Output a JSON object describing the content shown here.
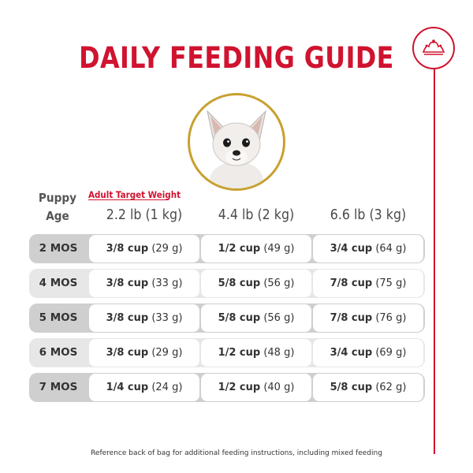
{
  "title": "DAILY FEEDING GUIDE",
  "target_weight_label": "Adult Target Weight",
  "age_header_line1": "Puppy",
  "age_header_line2": "Age",
  "columns": [
    "2.2 lb (1 kg)",
    "4.4 lb (2 kg)",
    "6.6 lb (3 kg)"
  ],
  "rows": [
    {
      "age": "2 MOS",
      "cells": [
        {
          "cup": "3/8 cup",
          "grams": "(29 g)"
        },
        {
          "cup": "1/2 cup",
          "grams": "(49 g)"
        },
        {
          "cup": "3/4 cup",
          "grams": "(64 g)"
        }
      ]
    },
    {
      "age": "4 MOS",
      "cells": [
        {
          "cup": "3/8 cup",
          "grams": "(33 g)"
        },
        {
          "cup": "5/8 cup",
          "grams": "(56 g)"
        },
        {
          "cup": "7/8 cup",
          "grams": "(75 g)"
        }
      ]
    },
    {
      "age": "5 MOS",
      "cells": [
        {
          "cup": "3/8 cup",
          "grams": "(33 g)"
        },
        {
          "cup": "5/8 cup",
          "grams": "(56 g)"
        },
        {
          "cup": "7/8 cup",
          "grams": "(76 g)"
        }
      ]
    },
    {
      "age": "6 MOS",
      "cells": [
        {
          "cup": "3/8 cup",
          "grams": "(29 g)"
        },
        {
          "cup": "1/2 cup",
          "grams": "(48 g)"
        },
        {
          "cup": "3/4 cup",
          "grams": "(69 g)"
        }
      ]
    },
    {
      "age": "7 MOS",
      "cells": [
        {
          "cup": "1/4 cup",
          "grams": "(24 g)"
        },
        {
          "cup": "1/2 cup",
          "grams": "(40 g)"
        },
        {
          "cup": "5/8 cup",
          "grams": "(62 g)"
        }
      ]
    }
  ],
  "footnote": "Reference back of bag for additional feeding instructions, including mixed feeding",
  "colors": {
    "brand_red": "#d0132f",
    "gold": "#c8a030",
    "row_dark": "#cfcfcf",
    "row_light": "#e7e7e7"
  },
  "icons": {
    "brand": "crown-icon",
    "photo": "chihuahua-puppy-photo"
  }
}
